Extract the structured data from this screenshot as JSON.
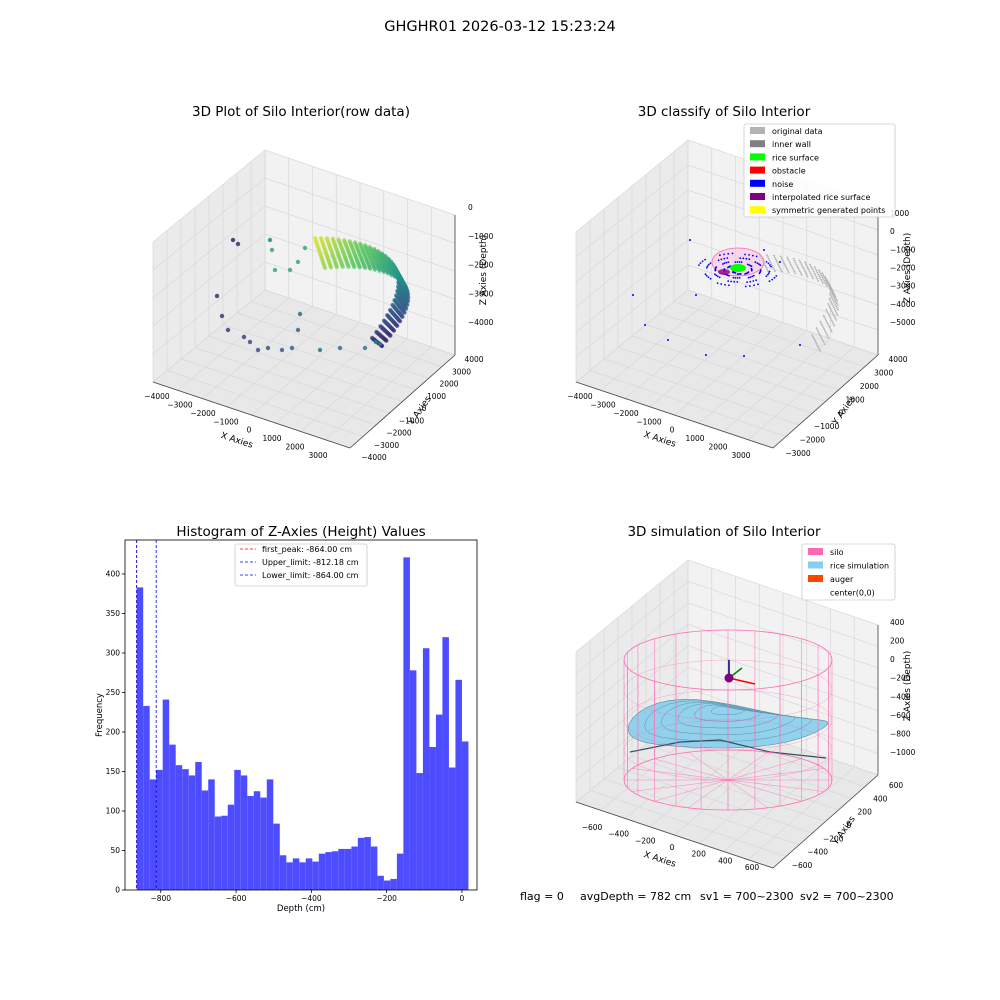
{
  "suptitle": "GHGHR01 2026-03-12 15:23:24",
  "footer": {
    "flag": "flag = 0",
    "avg_depth": "avgDepth = 782 cm",
    "sv1": "sv1 = 700~2300",
    "sv2": "sv2 = 700~2300"
  },
  "colors": {
    "hist_bar": "#4d4dff",
    "first_peak": "#ff0000",
    "limit_lines": "#0000ff",
    "silo": "#ff69b4",
    "rice": "#87ceeb",
    "auger": "#ff4500"
  },
  "chart_data": [
    {
      "type": "scatter",
      "title": "3D Plot of Silo Interior(row data)",
      "xlabel": "X Axies",
      "ylabel": "Y Axies",
      "zlabel": "Z Axies (Depth)",
      "x_ticks": [
        "−4000",
        "−3000",
        "−2000",
        "−1000",
        "0",
        "1000",
        "2000",
        "3000"
      ],
      "y_ticks": [
        "−4000",
        "−3000",
        "−2000",
        "−1000",
        "0",
        "1000",
        "2000",
        "3000",
        "4000"
      ],
      "z_ticks": [
        "0",
        "−1000",
        "−2000",
        "−3000",
        "−4000"
      ],
      "xlim": [
        -4300,
        3500
      ],
      "ylim": [
        -4000,
        4000
      ],
      "zlim": [
        -4700,
        0
      ],
      "colormap": "viridis by depth"
    },
    {
      "type": "scatter",
      "title": "3D classify of Silo Interior",
      "xlabel": "X Axies",
      "ylabel": "Y Axies",
      "zlabel": "Z Axies (Depth)",
      "x_ticks": [
        "−4000",
        "−3000",
        "−2000",
        "−1000",
        "0",
        "1000",
        "2000",
        "3000"
      ],
      "y_ticks": [
        "−3000",
        "−2000",
        "−1000",
        "0",
        "1000",
        "2000",
        "3000",
        "4000"
      ],
      "z_ticks": [
        "1000",
        "0",
        "−1000",
        "−2000",
        "−3000",
        "−4000",
        "−5000"
      ],
      "legend": [
        {
          "label": "original data",
          "color": "#b3b3b3"
        },
        {
          "label": "inner wall",
          "color": "#808080"
        },
        {
          "label": "rice surface",
          "color": "#00ff00"
        },
        {
          "label": "obstacle",
          "color": "#ff0000"
        },
        {
          "label": "noise",
          "color": "#0000ff"
        },
        {
          "label": "interpolated rice surface",
          "color": "#800080"
        },
        {
          "label": "symmetric generated points",
          "color": "#ffff00"
        }
      ],
      "legend_placement": "upper-right"
    },
    {
      "type": "bar",
      "title": "Histogram of Z-Axies (Height) Values",
      "xlabel": "Depth (cm)",
      "ylabel": "Frequency",
      "xlim": [
        -895,
        40
      ],
      "ylim": [
        0,
        443
      ],
      "x_ticks": [
        -800,
        -600,
        -400,
        -200,
        0
      ],
      "y_ticks": [
        0,
        50,
        100,
        150,
        200,
        250,
        300,
        350,
        400
      ],
      "bin_start": -864,
      "bin_width": 17.28,
      "values": [
        383,
        233,
        140,
        152,
        241,
        184,
        158,
        153,
        145,
        162,
        126,
        140,
        93,
        94,
        108,
        152,
        145,
        119,
        125,
        117,
        140,
        84,
        44,
        35,
        40,
        35,
        40,
        36,
        46,
        48,
        49,
        52,
        52,
        55,
        66,
        67,
        55,
        18,
        12,
        14,
        46,
        421,
        278,
        148,
        306,
        181,
        222,
        320,
        155,
        266,
        188
      ],
      "vlines": [
        {
          "label": "first_peak: -864.00 cm",
          "x": -864.0,
          "color": "#ff0000"
        },
        {
          "label": "Upper_limit: -812.18 cm",
          "x": -812.18,
          "color": "#0000ff"
        },
        {
          "label": "Lower_limit: -864.00 cm",
          "x": -864.0,
          "color": "#0000ff"
        }
      ],
      "legend_placement": "top-center"
    },
    {
      "type": "surface",
      "title": "3D simulation of Silo Interior",
      "xlabel": "X Axies",
      "ylabel": "Y Axies",
      "zlabel": "Z Axies (Depth)",
      "x_ticks": [
        "−600",
        "−400",
        "−200",
        "0",
        "200",
        "400",
        "600"
      ],
      "y_ticks": [
        "−600",
        "−400",
        "−200",
        "0",
        "200",
        "400",
        "600"
      ],
      "z_ticks": [
        "400",
        "200",
        "0",
        "−200",
        "−400",
        "−600",
        "−800",
        "−1000"
      ],
      "legend": [
        {
          "label": "silo",
          "color": "#ff69b4"
        },
        {
          "label": "rice simulation",
          "color": "#87ceeb"
        },
        {
          "label": "auger",
          "color": "#ff4500"
        },
        {
          "label": "center(0,0)",
          "color": ""
        }
      ],
      "legend_placement": "upper-right"
    }
  ]
}
